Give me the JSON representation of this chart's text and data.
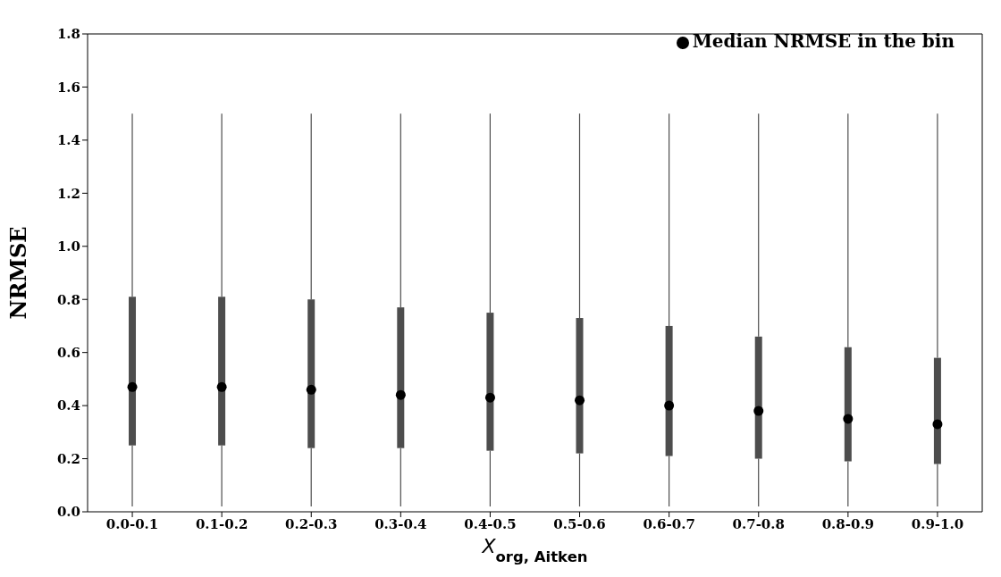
{
  "chart_data": {
    "type": "box",
    "xlabel": "X$_{org, Aitken}$",
    "ylabel": "NRMSE",
    "categories": [
      "0.0-0.1",
      "0.1-0.2",
      "0.2-0.3",
      "0.3-0.4",
      "0.4-0.5",
      "0.5-0.6",
      "0.6-0.7",
      "0.7-0.8",
      "0.8-0.9",
      "0.9-1.0"
    ],
    "ylim": [
      0,
      1.8
    ],
    "yticks": [
      {
        "value": 0,
        "label": "0.0"
      },
      {
        "value": 0.2,
        "label": "0.2"
      },
      {
        "value": 0.4,
        "label": "0.4"
      },
      {
        "value": 0.6,
        "label": "0.6"
      },
      {
        "value": 0.8,
        "label": "0.8"
      },
      {
        "value": 1,
        "label": "1.0"
      },
      {
        "value": 1.2,
        "label": "1.2"
      },
      {
        "value": 1.4,
        "label": "1.4"
      },
      {
        "value": 1.6,
        "label": "1.6"
      },
      {
        "value": 1.8,
        "label": "1.8"
      }
    ],
    "color": "#4d4d4d",
    "grid": false,
    "legend": "top right",
    "boxes": [
      {
        "low": 0.02,
        "q1": 0.25,
        "median": 0.47,
        "q3": 0.81,
        "high": 1.5
      },
      {
        "low": 0.02,
        "q1": 0.25,
        "median": 0.47,
        "q3": 0.81,
        "high": 1.5
      },
      {
        "low": 0.02,
        "q1": 0.24,
        "median": 0.46,
        "q3": 0.8,
        "high": 1.5
      },
      {
        "low": 0.02,
        "q1": 0.24,
        "median": 0.44,
        "q3": 0.77,
        "high": 1.5
      },
      {
        "low": 0.02,
        "q1": 0.23,
        "median": 0.43,
        "q3": 0.75,
        "high": 1.5
      },
      {
        "low": 0.02,
        "q1": 0.22,
        "median": 0.42,
        "q3": 0.73,
        "high": 1.5
      },
      {
        "low": 0.02,
        "q1": 0.21,
        "median": 0.4,
        "q3": 0.7,
        "high": 1.5
      },
      {
        "low": 0.02,
        "q1": 0.2,
        "median": 0.38,
        "q3": 0.66,
        "high": 1.5
      },
      {
        "low": 0.02,
        "q1": 0.19,
        "median": 0.35,
        "q3": 0.62,
        "high": 1.5
      },
      {
        "low": 0.02,
        "q1": 0.18,
        "median": 0.33,
        "q3": 0.58,
        "high": 1.5
      }
    ],
    "series": [
      {
        "type": "scatter",
        "name": "Median NRMSE in the bin",
        "color": "#000000",
        "x": [
          "0.0-0.1",
          "0.1-0.2",
          "0.2-0.3",
          "0.3-0.4",
          "0.4-0.5",
          "0.5-0.6",
          "0.6-0.7",
          "0.7-0.8",
          "0.8-0.9",
          "0.9-1.0"
        ],
        "values": [
          0.47,
          0.47,
          0.46,
          0.44,
          0.43,
          0.42,
          0.4,
          0.38,
          0.35,
          0.33
        ]
      }
    ]
  }
}
